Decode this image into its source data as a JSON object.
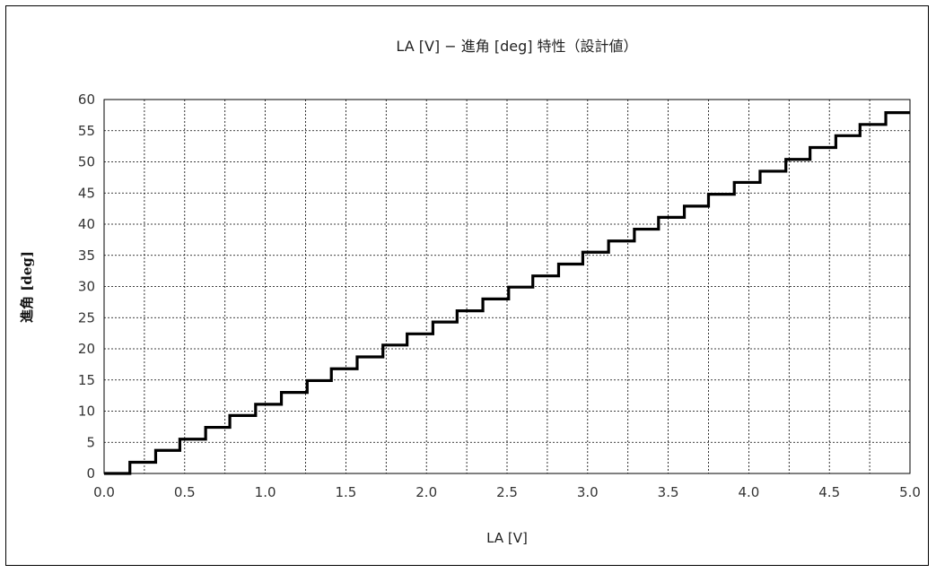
{
  "chart_data": {
    "type": "line",
    "title": "LA [V] − 進角 [deg] 特性（設計値）",
    "xlabel": "LA [V]",
    "ylabel": "進角 [deg]",
    "xlim": [
      0,
      5
    ],
    "ylim": [
      0,
      60
    ],
    "grid": true,
    "legend": "none",
    "line_style": "step",
    "x_ticks": [
      "0.0",
      "0.5",
      "1.0",
      "1.5",
      "2.0",
      "2.5",
      "3.0",
      "3.5",
      "4.0",
      "4.5",
      "5.0"
    ],
    "y_ticks": [
      "0",
      "5",
      "10",
      "15",
      "20",
      "25",
      "30",
      "35",
      "40",
      "45",
      "50",
      "55",
      "60"
    ],
    "series": [
      {
        "x": [
          0.0,
          0.16,
          0.32,
          0.47,
          0.63,
          0.78,
          0.94,
          1.1,
          1.26,
          1.41,
          1.57,
          1.73,
          1.88,
          2.04,
          2.19,
          2.35,
          2.51,
          2.66,
          2.82,
          2.97,
          3.13,
          3.29,
          3.44,
          3.6,
          3.75,
          3.91,
          4.07,
          4.23,
          4.38,
          4.54,
          4.69,
          4.85,
          5.0
        ],
        "y": [
          0.0,
          1.8,
          3.7,
          5.5,
          7.4,
          9.3,
          11.1,
          13.0,
          14.9,
          16.8,
          18.7,
          20.6,
          22.4,
          24.3,
          26.1,
          28.0,
          29.9,
          31.7,
          33.6,
          35.5,
          37.3,
          39.2,
          41.1,
          42.9,
          44.8,
          46.7,
          48.5,
          50.4,
          52.3,
          54.2,
          56.0,
          57.9,
          57.9
        ]
      }
    ],
    "line_color": "#000000"
  }
}
